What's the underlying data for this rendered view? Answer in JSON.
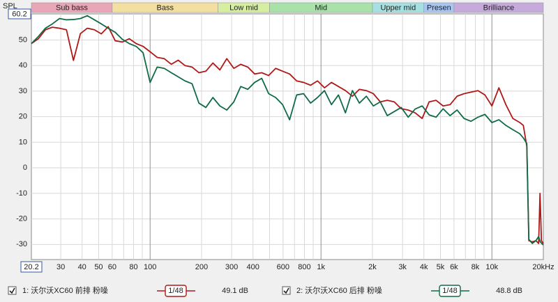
{
  "chart_data": {
    "type": "line",
    "ylabel": "SPL",
    "xscale": "log",
    "xlim": [
      20.2,
      20000
    ],
    "ylim": [
      -35.9,
      60.2
    ],
    "xticks": [
      30,
      40,
      50,
      60,
      80,
      100,
      200,
      300,
      400,
      600,
      800,
      {
        "value": 1000,
        "label": "1k"
      },
      {
        "value": 2000,
        "label": "2k"
      },
      {
        "value": 3000,
        "label": "3k"
      },
      {
        "value": 4000,
        "label": "4k"
      },
      {
        "value": 5000,
        "label": "5k"
      },
      {
        "value": 6000,
        "label": "6k"
      },
      {
        "value": 8000,
        "label": "8k"
      },
      {
        "value": 10000,
        "label": "10k"
      },
      {
        "value": 20000,
        "label": "20kHz"
      }
    ],
    "xgrid": [
      70,
      90,
      500,
      700,
      900,
      7000,
      9000
    ],
    "yticks": [
      50,
      40,
      30,
      20,
      10,
      0,
      -10,
      -20,
      -30
    ],
    "grid": true,
    "bands": [
      {
        "label": "Sub bass",
        "from": 20,
        "to": 60,
        "color": "#e8a6b6"
      },
      {
        "label": "Bass",
        "from": 60,
        "to": 250,
        "color": "#f3dfa0"
      },
      {
        "label": "Low mid",
        "from": 250,
        "to": 500,
        "color": "#d6eea0"
      },
      {
        "label": "Mid",
        "from": 500,
        "to": 2000,
        "color": "#a8e2a8"
      },
      {
        "label": "Upper mid",
        "from": 2000,
        "to": 4000,
        "color": "#a6e0e0"
      },
      {
        "label": "Presen",
        "from": 4000,
        "to": 6000,
        "color": "#a8c6f0"
      },
      {
        "label": "Brilliance",
        "from": 6000,
        "to": 20000,
        "color": "#c6aadc"
      }
    ],
    "x": [
      20.2,
      22.2,
      24.4,
      26.8,
      29.5,
      32.4,
      35.6,
      39.1,
      42.9,
      47.2,
      51.8,
      56.9,
      62.5,
      68.7,
      75.5,
      82.9,
      91.0,
      100,
      110,
      121,
      133,
      146,
      160,
      176,
      193,
      212,
      233,
      256,
      281,
      309,
      339,
      373,
      409,
      450,
      494,
      543,
      596,
      655,
      720,
      791,
      869,
      954,
      1048,
      1151,
      1265,
      1390,
      1527,
      1677,
      1842,
      2024,
      2223,
      2442,
      2683,
      2947,
      3238,
      3556,
      3907,
      4292,
      4715,
      5180,
      5691,
      6252,
      6869,
      7545,
      8290,
      9103,
      10000,
      10987,
      12070,
      13260,
      14570,
      15270,
      16000,
      16450,
      17250,
      18080,
      18770,
      19120,
      19490,
      20000
    ],
    "series": [
      {
        "name": "1: 沃尔沃XC60 前排 粉噪",
        "color": "#b01818",
        "smoothing": "1/48",
        "level": "49.1 dB",
        "values": [
          48.6,
          50.5,
          54,
          55,
          54.6,
          54,
          42,
          52.5,
          54.6,
          54,
          52.4,
          55.2,
          49.7,
          49.2,
          50.5,
          48.6,
          47.5,
          45.4,
          43.2,
          42.7,
          40.5,
          42.1,
          40,
          39.4,
          37.2,
          37.8,
          41,
          38.3,
          42.7,
          38.9,
          40.5,
          39.4,
          36.7,
          37.2,
          36.1,
          38.9,
          37.8,
          36.7,
          34,
          33.4,
          32.3,
          34,
          31.3,
          33.4,
          31.8,
          30.2,
          28,
          30.7,
          30.2,
          29,
          25.8,
          26.4,
          25.8,
          23.1,
          22.6,
          21.5,
          19.3,
          25.8,
          26.4,
          24.2,
          24.7,
          28,
          29,
          29.6,
          30.2,
          28.5,
          24.2,
          31.3,
          24.7,
          19.3,
          17.7,
          16.6,
          8.4,
          -28.5,
          -29,
          -28.5,
          -29.6,
          -10,
          -28.5,
          -29.6
        ]
      },
      {
        "name": "2: 沃尔沃XC60 后排 粉噪",
        "color": "#0f6b45",
        "smoothing": "1/48",
        "level": "48.8 dB",
        "values": [
          48.6,
          51.4,
          54.6,
          56.3,
          58.4,
          57.9,
          58,
          58.4,
          59.5,
          57.9,
          56.3,
          54.6,
          53,
          50.3,
          48.6,
          47.5,
          45,
          33.4,
          39.4,
          38.9,
          37.2,
          35.6,
          34,
          32.9,
          25.3,
          23.6,
          27.5,
          24.2,
          22.6,
          25.8,
          31.8,
          30.7,
          33.4,
          35,
          29,
          27.5,
          24.7,
          18.8,
          28.5,
          29,
          25.3,
          27.5,
          30.2,
          24.7,
          28.5,
          21.5,
          30.2,
          25.3,
          28,
          24.2,
          25.8,
          20.4,
          22,
          23.6,
          19.8,
          23,
          24.2,
          20.7,
          19.8,
          23.1,
          20.4,
          22.6,
          19.3,
          18.2,
          19.8,
          20.9,
          17.7,
          18.8,
          16.6,
          14.9,
          13.3,
          11.7,
          9.5,
          -28,
          -29.6,
          -28.5,
          -26.9,
          -28.8,
          -29.5,
          -30.2
        ]
      }
    ]
  }
}
